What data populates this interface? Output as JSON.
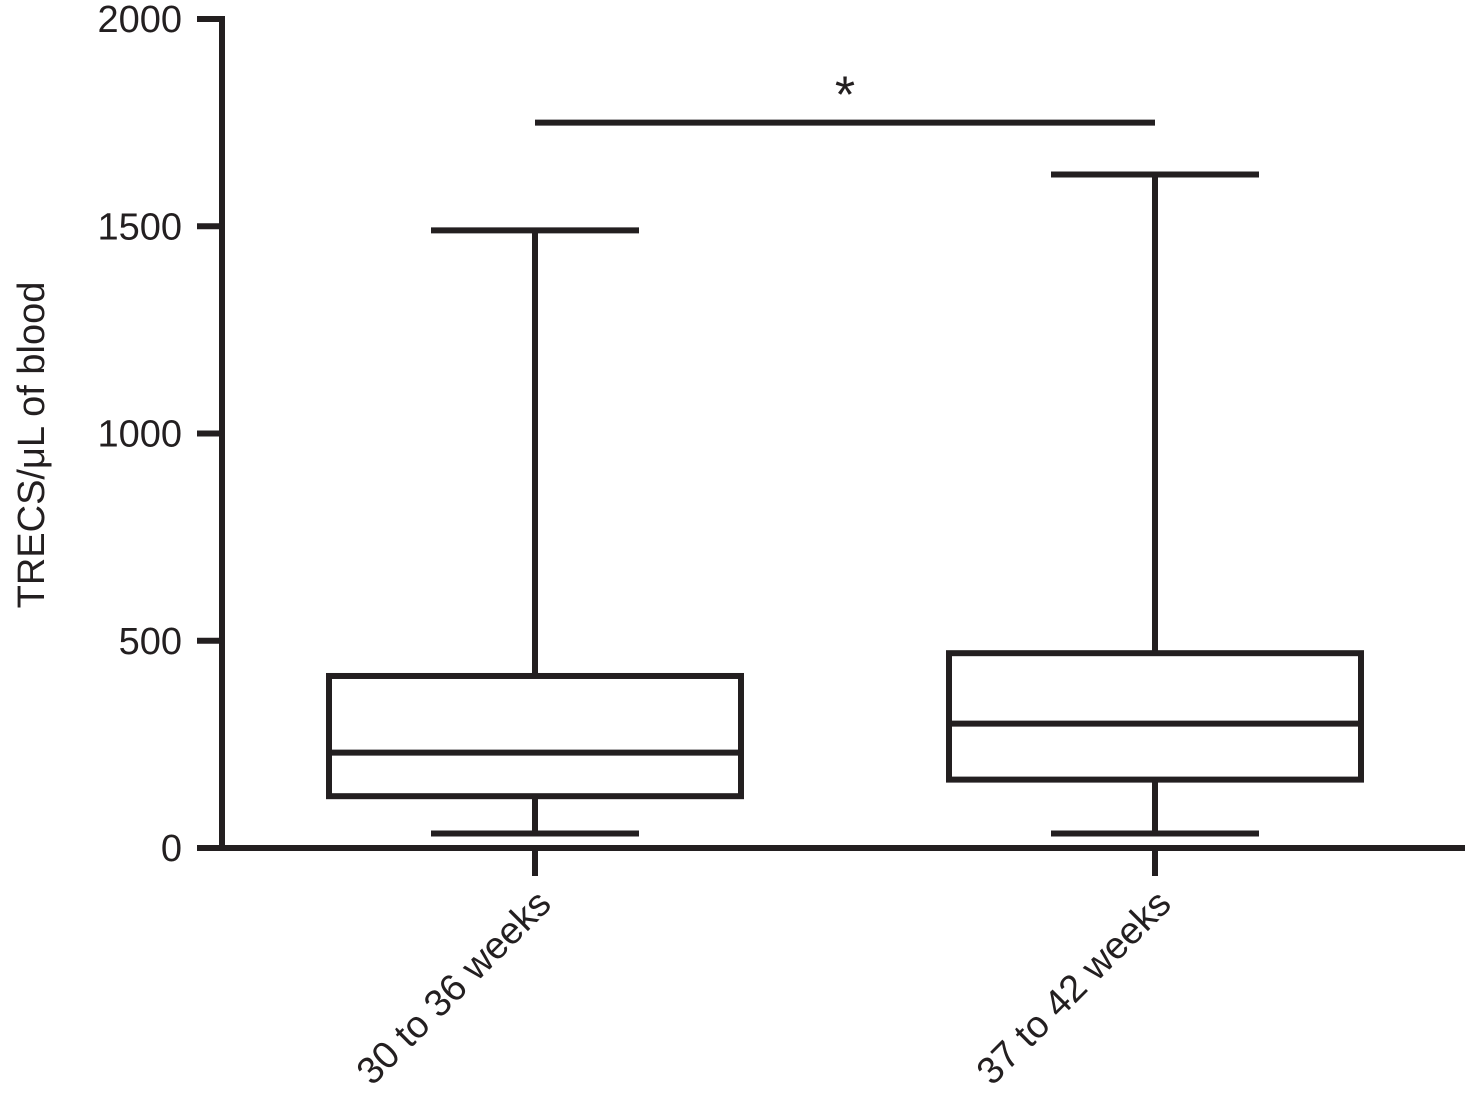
{
  "chart_data": {
    "type": "box",
    "y_label": "TRECS/μL of blood",
    "categories": [
      "30 to 36 weeks",
      "37 to 42 weeks"
    ],
    "boxes": [
      {
        "min": 35,
        "q1": 125,
        "median": 230,
        "q3": 415,
        "max": 1490
      },
      {
        "min": 35,
        "q1": 165,
        "median": 300,
        "q3": 470,
        "max": 1625
      }
    ],
    "ylim": [
      0,
      2000
    ],
    "yticks": [
      0,
      500,
      1000,
      1500,
      2000
    ],
    "color": "#231f20",
    "annotations": [
      {
        "text": "*",
        "from": 0,
        "to": 1,
        "y": 1750
      }
    ]
  }
}
